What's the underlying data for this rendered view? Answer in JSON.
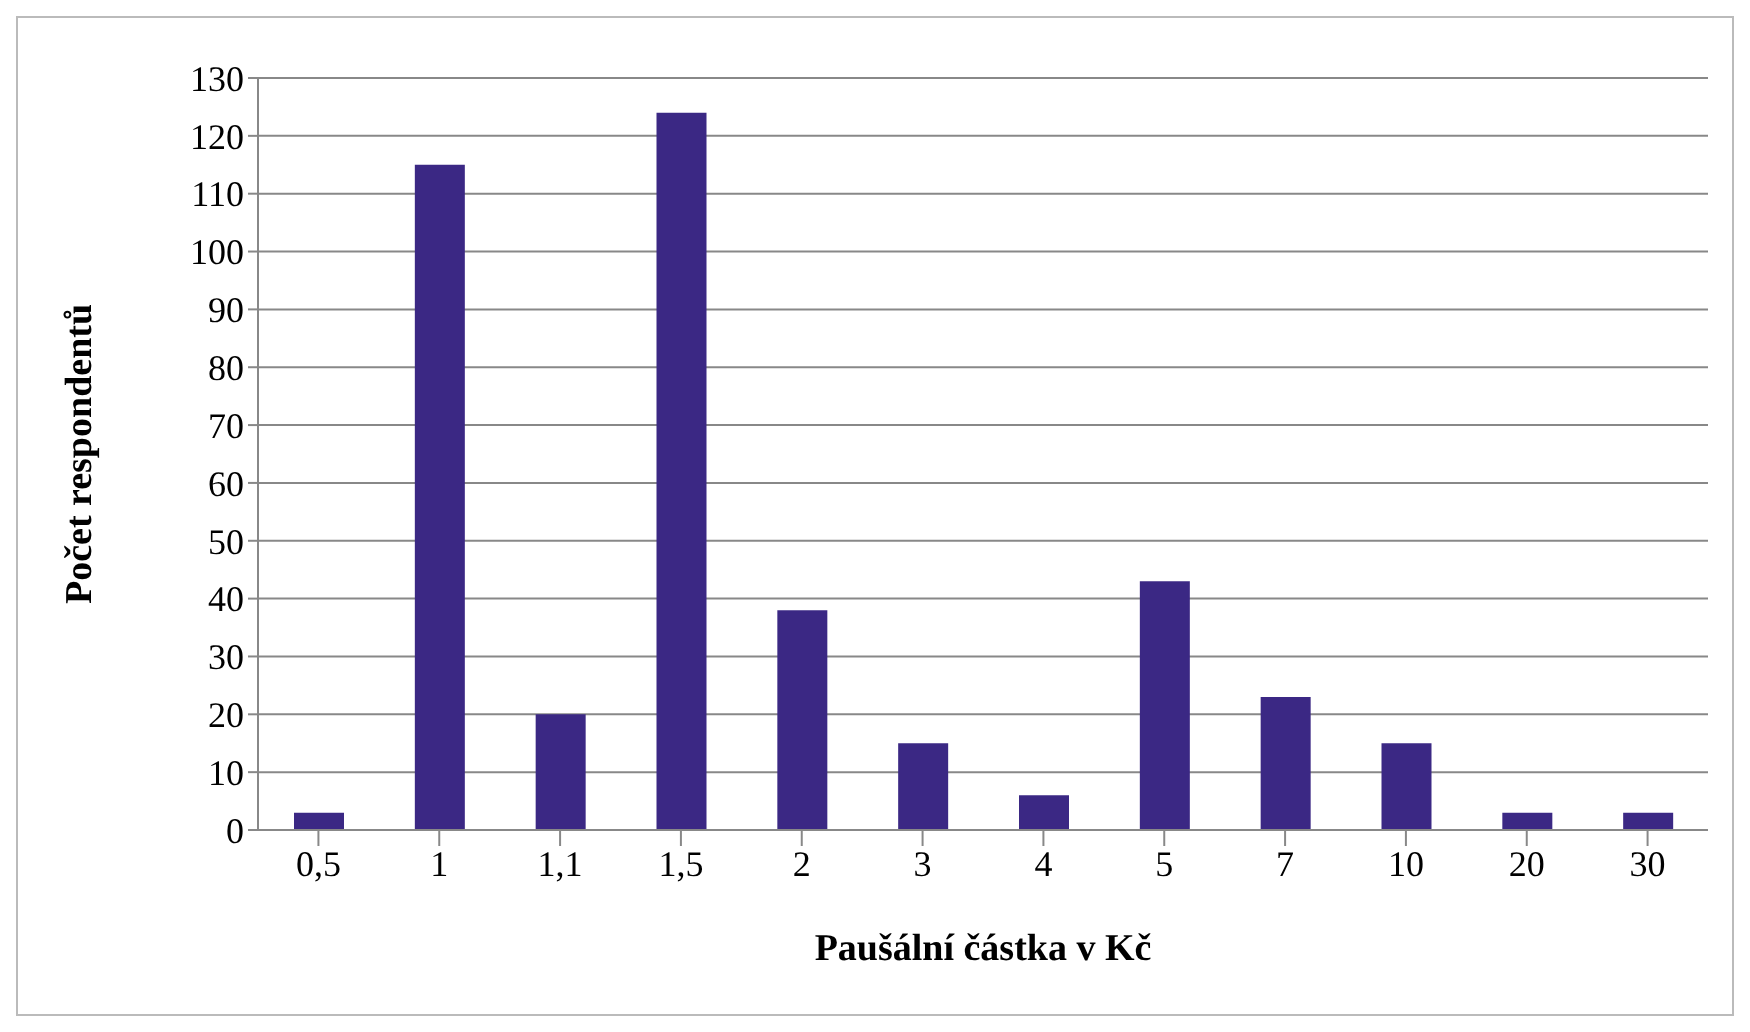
{
  "chart_data": {
    "type": "bar",
    "xlabel": "Paušální částka v Kč",
    "ylabel": "Počet  respondentů",
    "categories": [
      "0,5",
      "1",
      "1,1",
      "1,5",
      "2",
      "3",
      "4",
      "5",
      "7",
      "10",
      "20",
      "30"
    ],
    "values": [
      3,
      115,
      20,
      124,
      38,
      15,
      6,
      43,
      23,
      15,
      3,
      3
    ],
    "color": "#3b2884",
    "ylim": [
      0,
      130
    ],
    "yticks": [
      0,
      10,
      20,
      30,
      40,
      50,
      60,
      70,
      80,
      90,
      100,
      110,
      120,
      130
    ],
    "grid": "y"
  }
}
